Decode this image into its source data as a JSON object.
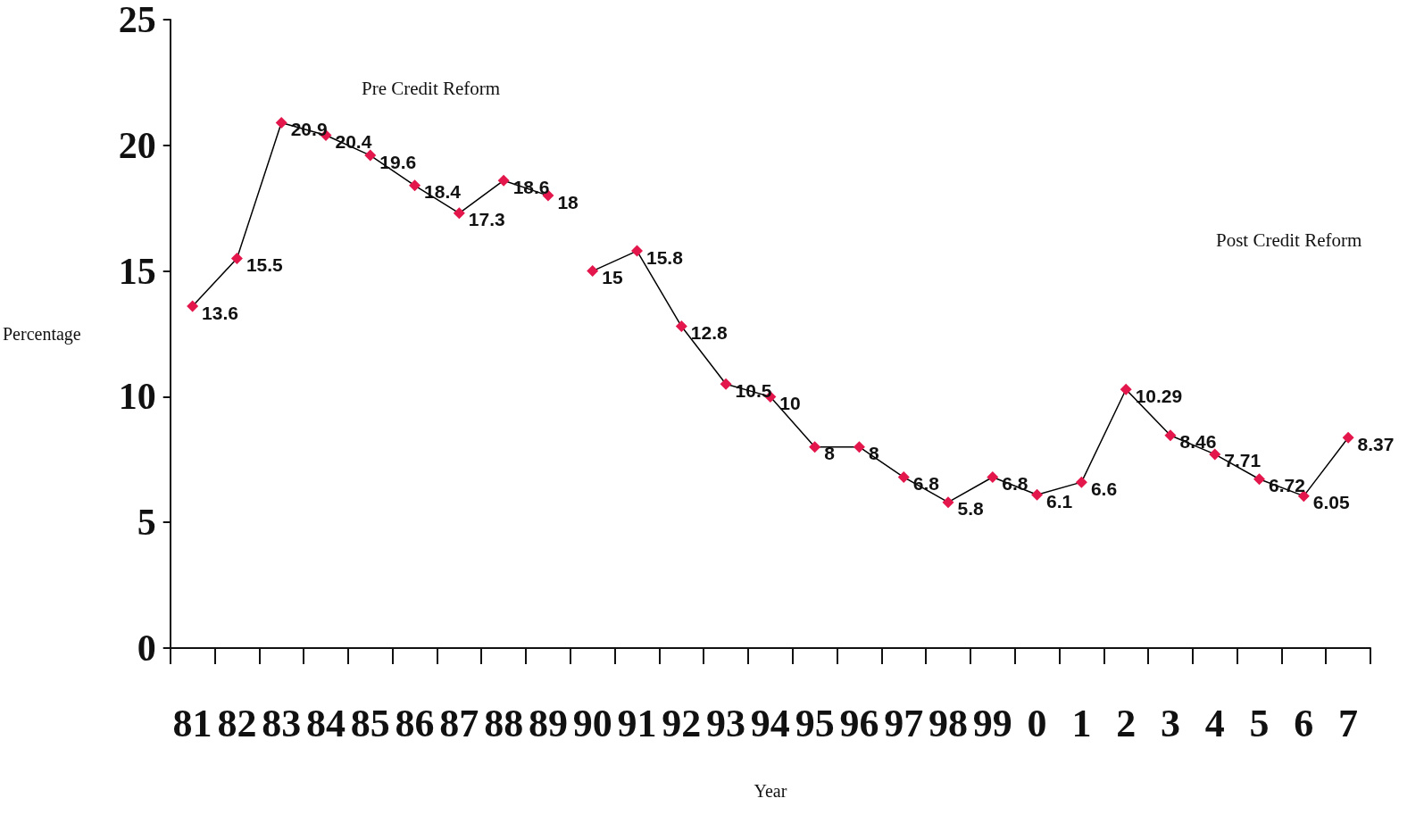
{
  "chart_data": {
    "type": "line",
    "xlabel": "Year",
    "ylabel": "Percentage",
    "categories": [
      "81",
      "82",
      "83",
      "84",
      "85",
      "86",
      "87",
      "88",
      "89",
      "90",
      "91",
      "92",
      "93",
      "94",
      "95",
      "96",
      "97",
      "98",
      "99",
      "0",
      "1",
      "2",
      "3",
      "4",
      "5",
      "6",
      "7"
    ],
    "series": [
      {
        "color": "#e3174b",
        "values": [
          13.6,
          15.5,
          20.9,
          20.4,
          19.6,
          18.4,
          17.3,
          18.6,
          18,
          null,
          null,
          null,
          null,
          null,
          null,
          null,
          null,
          null,
          null,
          null,
          null,
          null,
          null,
          null,
          null,
          null,
          null
        ]
      },
      {
        "color": "#e3174b",
        "values": [
          null,
          null,
          null,
          null,
          null,
          null,
          null,
          null,
          null,
          15,
          15.8,
          12.8,
          10.5,
          10,
          8,
          8,
          6.8,
          5.8,
          6.8,
          6.1,
          6.6,
          10.29,
          8.46,
          7.71,
          6.72,
          6.05,
          8.37
        ]
      }
    ],
    "ylim": [
      0,
      25
    ],
    "yticks": [
      0,
      5,
      10,
      15,
      20,
      25
    ],
    "grid": false,
    "marker": "diamond",
    "line_style": "solid",
    "data_labels": true,
    "annotations": [
      "Pre Credit Reform",
      "Post Credit Reform"
    ]
  }
}
